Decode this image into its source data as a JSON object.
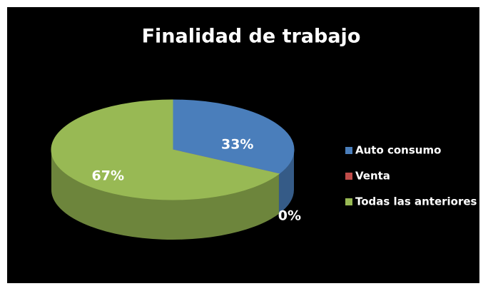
{
  "chart_data": {
    "type": "pie",
    "title": "Finalidad de trabajo",
    "categories": [
      "Auto consumo",
      "Venta",
      "Todas las anteriores"
    ],
    "values": [
      33,
      0,
      67
    ],
    "value_labels": [
      "33%",
      "0%",
      "67%"
    ],
    "colors": [
      "#4a7ebb",
      "#be4b48",
      "#98b954"
    ],
    "legend": "right"
  }
}
